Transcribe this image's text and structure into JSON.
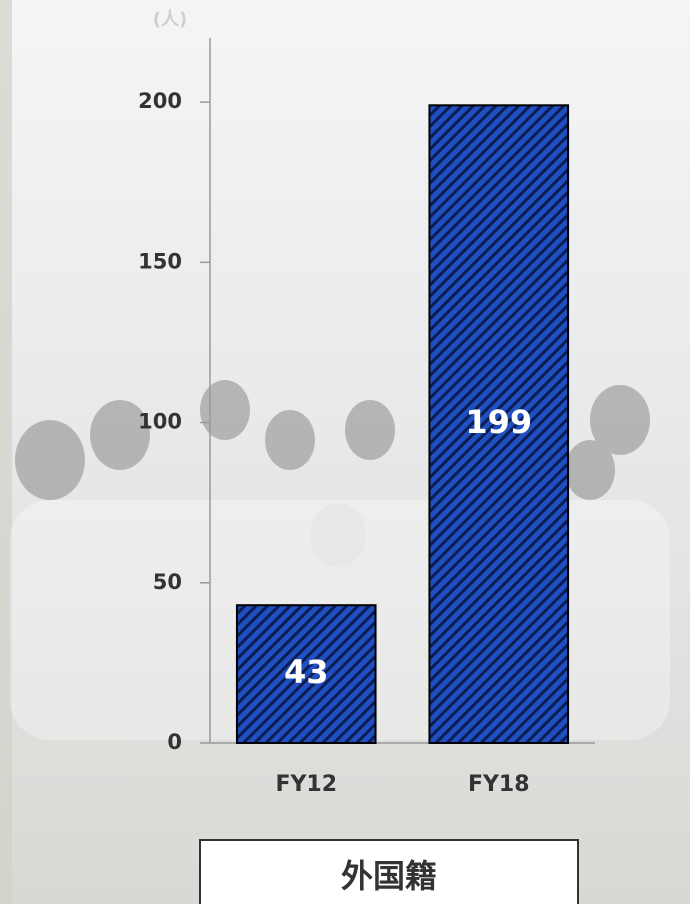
{
  "chart_data": {
    "type": "bar",
    "y_label": "(人)",
    "annotation": "外国籍",
    "categories": [
      "FY12",
      "FY18"
    ],
    "values": [
      43,
      199
    ],
    "color": "#1f4fc0",
    "ylim": [
      0,
      220
    ],
    "yticks": [
      0,
      50,
      100,
      150,
      200
    ],
    "grid": false
  }
}
